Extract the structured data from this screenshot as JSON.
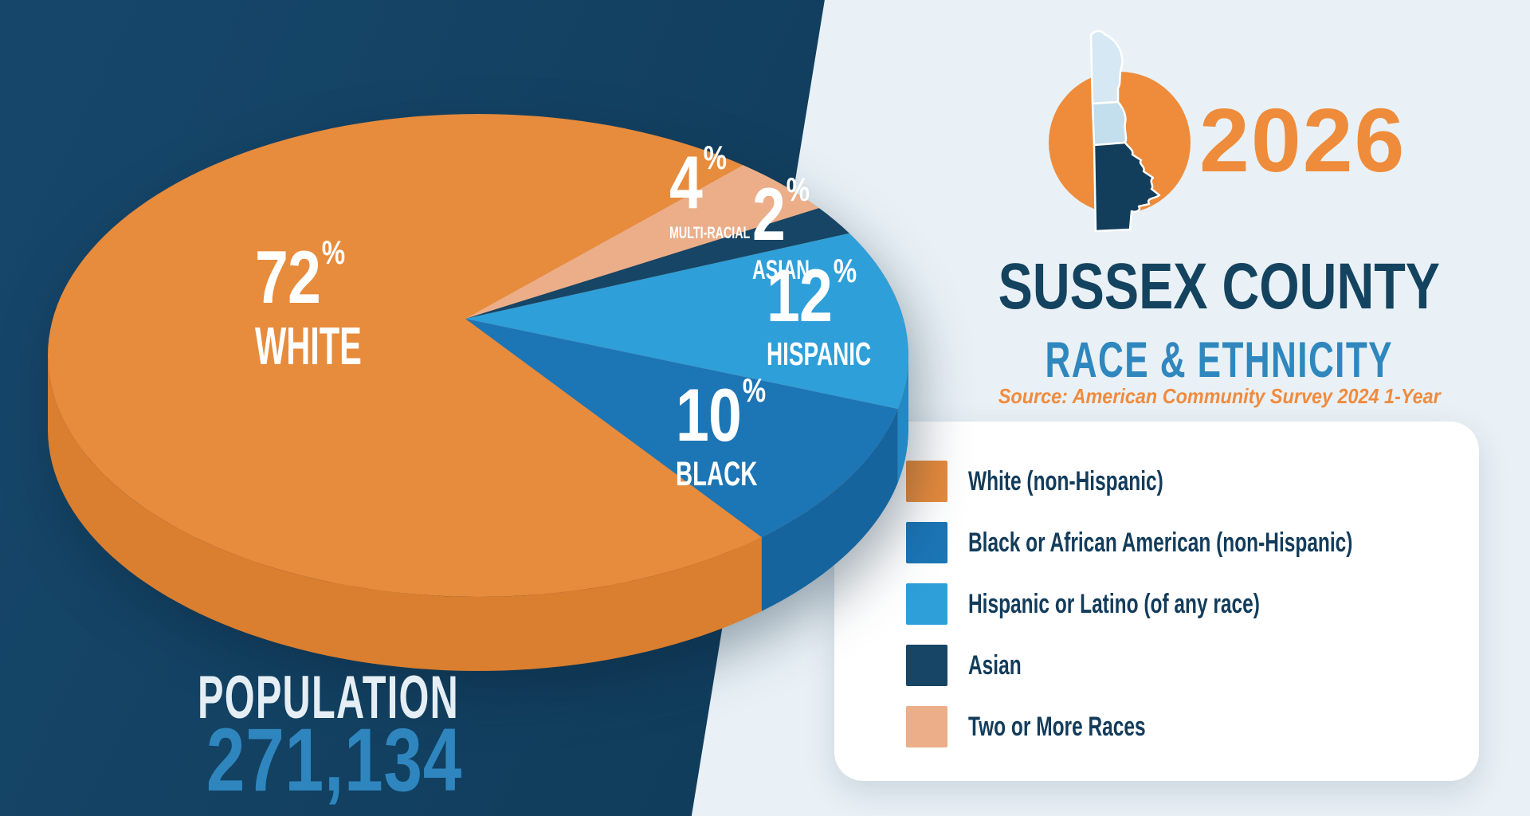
{
  "header": {
    "year": "2026",
    "title": "SUSSEX COUNTY",
    "subtitle": "RACE & ETHNICITY",
    "source": "Source: American Community Survey 2024 1-Year",
    "logo": {
      "name": "delaware-counties-map",
      "circle_color": "#EE8C3B",
      "new_castle_color": "#D5E8F3",
      "kent_color": "#C3DEED",
      "sussex_color": "#123D5B"
    }
  },
  "population": {
    "label": "POPULATION",
    "value": "271,134"
  },
  "chart_data": {
    "type": "pie",
    "title": "Sussex County Race & Ethnicity 2026",
    "units": "percent of total population",
    "population_total": "271,134",
    "slices": [
      {
        "id": "white",
        "legend_label": "White (non-Hispanic)",
        "pie_label": "WHITE",
        "value": 72,
        "display": "72",
        "unit": "%",
        "color": "#E78B3C",
        "side_color": "#DA7E2F"
      },
      {
        "id": "black",
        "legend_label": "Black or African American (non-Hispanic)",
        "pie_label": "BLACK",
        "value": 10,
        "display": "10",
        "unit": "%",
        "color": "#1C75B5",
        "side_color": "#15649E"
      },
      {
        "id": "hispanic",
        "legend_label": "Hispanic or Latino (of any race)",
        "pie_label": "HISPANIC",
        "value": 12,
        "display": "12",
        "unit": "%",
        "color": "#2E9FD9",
        "side_color": "#2388C4"
      },
      {
        "id": "asian",
        "legend_label": "Asian",
        "pie_label": "ASIAN",
        "value": 2,
        "display": "2",
        "unit": "%",
        "color": "#164566",
        "side_color": "#0F3A55"
      },
      {
        "id": "multiracial",
        "legend_label": "Two or More Races",
        "pie_label": "MULTI-RACIAL",
        "value": 4,
        "display": "4",
        "unit": "%",
        "color": "#EBAE89",
        "side_color": "#DE9B74"
      }
    ],
    "draw_order": [
      4,
      3,
      2,
      1,
      0
    ],
    "start_angle_deg": -52,
    "legend_position": "right-card",
    "style": "3d-pie"
  },
  "colors": {
    "bg_dark": "#123F5E",
    "bg_light": "#E9F1F6",
    "card": "#FFFFFF",
    "accent_orange": "#EE8C3B",
    "accent_blue": "#2F86BE",
    "title_navy": "#14435F"
  }
}
